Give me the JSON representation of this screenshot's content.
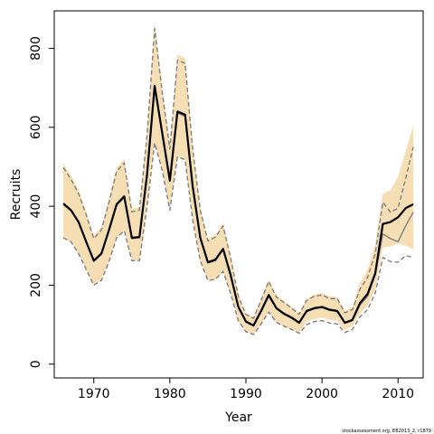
{
  "chart_data": {
    "type": "line",
    "xlabel": "Year",
    "ylabel": "Recruits",
    "xlim": [
      1964.8,
      2013.3
    ],
    "ylim": [
      -35,
      895
    ],
    "xticks": [
      1970,
      1980,
      1990,
      2000,
      2010
    ],
    "yticks": [
      0,
      200,
      400,
      600,
      800
    ],
    "grid": false,
    "band_color": "#f5deb3",
    "years": [
      1966,
      1967,
      1968,
      1969,
      1970,
      1971,
      1972,
      1973,
      1974,
      1975,
      1976,
      1977,
      1978,
      1979,
      1980,
      1981,
      1982,
      1983,
      1984,
      1985,
      1986,
      1987,
      1988,
      1989,
      1990,
      1991,
      1992,
      1993,
      1994,
      1995,
      1996,
      1997,
      1998,
      1999,
      2000,
      2001,
      2002,
      2003,
      2004,
      2005,
      2006,
      2007,
      2008,
      2009,
      2010,
      2011,
      2012
    ],
    "series": [
      {
        "role": "estimate",
        "color": "#000000",
        "style": "solid",
        "values": [
          407,
          390,
          360,
          310,
          262,
          280,
          340,
          405,
          425,
          320,
          322,
          480,
          705,
          585,
          465,
          640,
          632,
          450,
          320,
          258,
          265,
          292,
          225,
          145,
          108,
          98,
          135,
          175,
          142,
          128,
          118,
          105,
          135,
          142,
          145,
          138,
          135,
          105,
          112,
          155,
          178,
          230,
          355,
          360,
          372,
          395,
          405
        ]
      },
      {
        "role": "alternate-estimate",
        "color": "#808080",
        "style": "solid",
        "values": [
          404,
          388,
          358,
          308,
          260,
          278,
          338,
          402,
          422,
          318,
          320,
          478,
          700,
          582,
          462,
          636,
          628,
          446,
          318,
          256,
          262,
          290,
          222,
          143,
          106,
          96,
          133,
          172,
          140,
          126,
          116,
          103,
          133,
          140,
          143,
          136,
          133,
          103,
          110,
          150,
          172,
          226,
          330,
          318,
          310,
          350,
          385
        ]
      },
      {
        "role": "alternate-lower",
        "color": "#808080",
        "style": "dashed",
        "values": [
          320,
          310,
          280,
          240,
          200,
          212,
          260,
          320,
          338,
          262,
          262,
          400,
          560,
          490,
          390,
          525,
          518,
          365,
          262,
          212,
          215,
          235,
          178,
          110,
          82,
          75,
          102,
          132,
          106,
          96,
          88,
          78,
          100,
          108,
          110,
          104,
          102,
          80,
          88,
          120,
          138,
          180,
          270,
          260,
          258,
          275,
          270
        ]
      },
      {
        "role": "alternate-upper",
        "color": "#808080",
        "style": "dashed",
        "values": [
          498,
          468,
          432,
          378,
          318,
          340,
          410,
          488,
          510,
          386,
          390,
          580,
          850,
          688,
          545,
          770,
          762,
          545,
          390,
          312,
          322,
          350,
          268,
          172,
          126,
          116,
          162,
          210,
          170,
          156,
          142,
          126,
          162,
          172,
          175,
          166,
          166,
          130,
          138,
          190,
          220,
          280,
          410,
          385,
          395,
          470,
          550
        ]
      }
    ],
    "band": {
      "name": "uncertainty interval",
      "lower": [
        320,
        310,
        280,
        240,
        200,
        212,
        260,
        320,
        338,
        262,
        262,
        400,
        560,
        490,
        390,
        525,
        518,
        365,
        262,
        212,
        215,
        235,
        178,
        110,
        82,
        75,
        102,
        132,
        106,
        96,
        88,
        78,
        110,
        114,
        118,
        112,
        110,
        86,
        96,
        128,
        148,
        190,
        295,
        298,
        305,
        300,
        290
      ],
      "upper": [
        508,
        478,
        442,
        386,
        326,
        348,
        420,
        498,
        520,
        394,
        398,
        592,
        870,
        700,
        556,
        785,
        775,
        555,
        398,
        318,
        328,
        358,
        275,
        176,
        128,
        120,
        166,
        214,
        174,
        160,
        146,
        130,
        166,
        176,
        180,
        172,
        170,
        134,
        146,
        206,
        240,
        304,
        432,
        440,
        475,
        540,
        605
      ]
    },
    "credit": "stockassessment.org, EB2013_2, r1879"
  }
}
